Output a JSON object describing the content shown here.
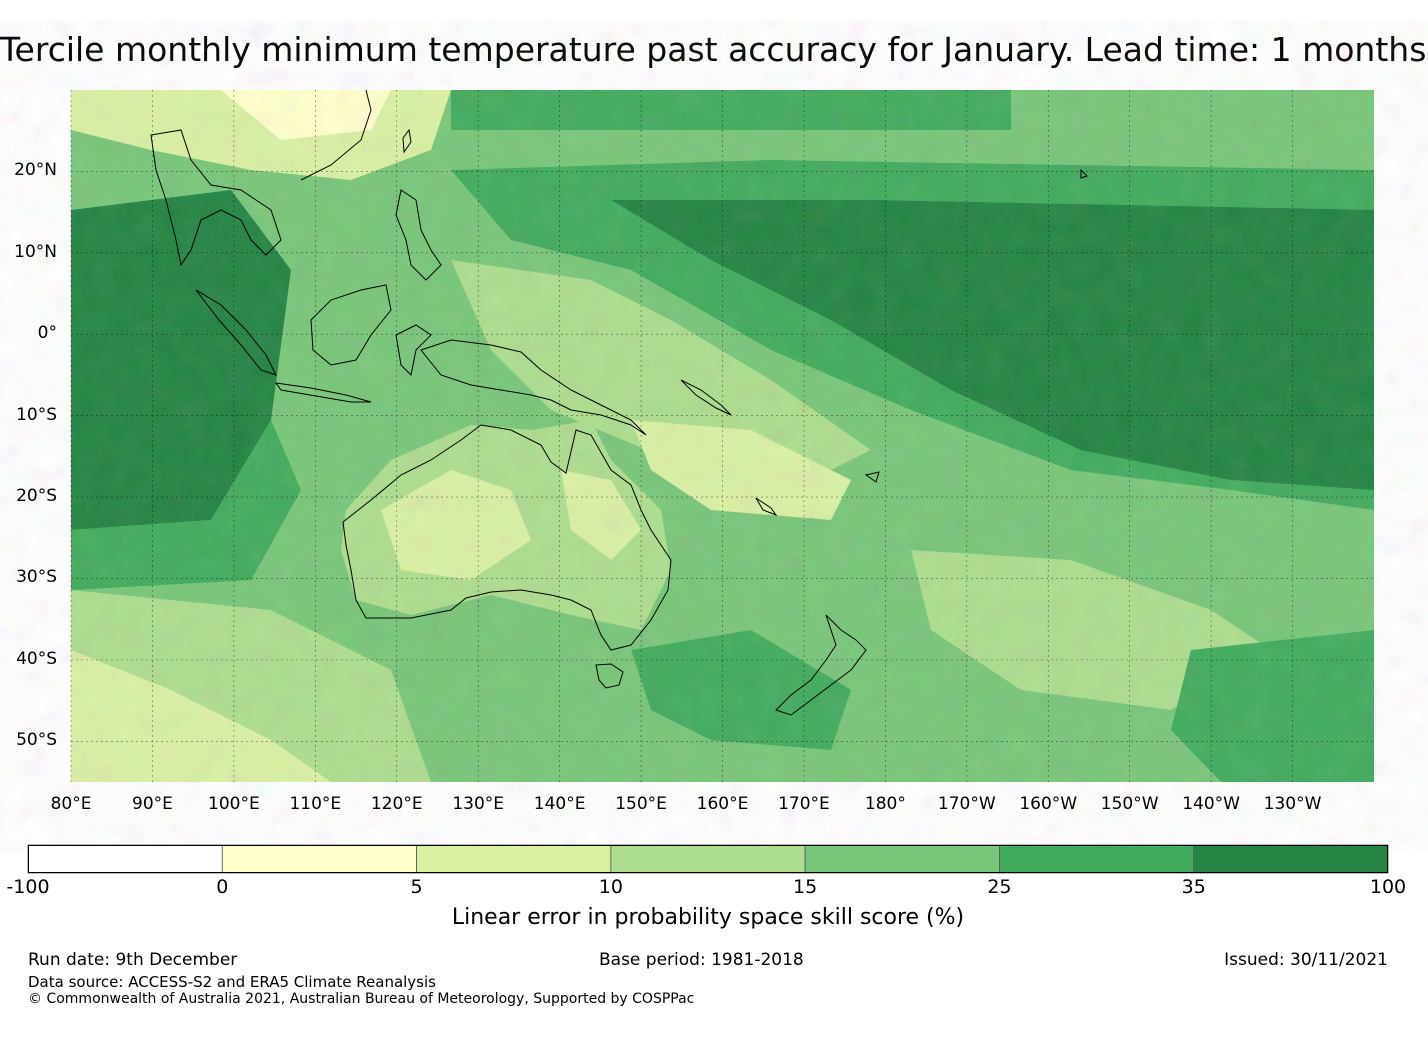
{
  "title": "Tercile monthly minimum temperature past accuracy for January. Lead time: 1 months",
  "map": {
    "lat_labels": [
      "20°N",
      "10°N",
      "0°",
      "10°S",
      "20°S",
      "30°S",
      "40°S",
      "50°S"
    ],
    "lat_values": [
      20,
      10,
      0,
      -10,
      -20,
      -30,
      -40,
      -50
    ],
    "lon_labels": [
      "80°E",
      "90°E",
      "100°E",
      "110°E",
      "120°E",
      "130°E",
      "140°E",
      "150°E",
      "160°E",
      "170°E",
      "180°",
      "170°W",
      "160°W",
      "150°W",
      "140°W",
      "130°W"
    ],
    "lon_values": [
      80,
      90,
      100,
      110,
      120,
      130,
      140,
      150,
      160,
      170,
      180,
      190,
      200,
      210,
      220,
      230
    ],
    "extent": {
      "lon_min": 80,
      "lon_max": 240,
      "lat_min": -55,
      "lat_max": 30
    }
  },
  "colorbar": {
    "ticks": [
      "-100",
      "0",
      "5",
      "10",
      "15",
      "25",
      "35",
      "100"
    ],
    "colors": [
      "#ffffff",
      "#ffffcc",
      "#d9f0a3",
      "#addd8e",
      "#78c679",
      "#41ab5d",
      "#238443"
    ],
    "label": "Linear error in probability space skill score (%)"
  },
  "footer": {
    "run_date": "Run date: 9th December",
    "base_period": "Base period: 1981-2018",
    "issued": "Issued: 30/11/2021",
    "data_source": "Data source: ACCESS-S2 and ERA5 Climate Reanalysis",
    "copyright": "© Commonwealth of Australia 2021, Australian Bureau of Meteorology, Supported by COSPPac"
  }
}
